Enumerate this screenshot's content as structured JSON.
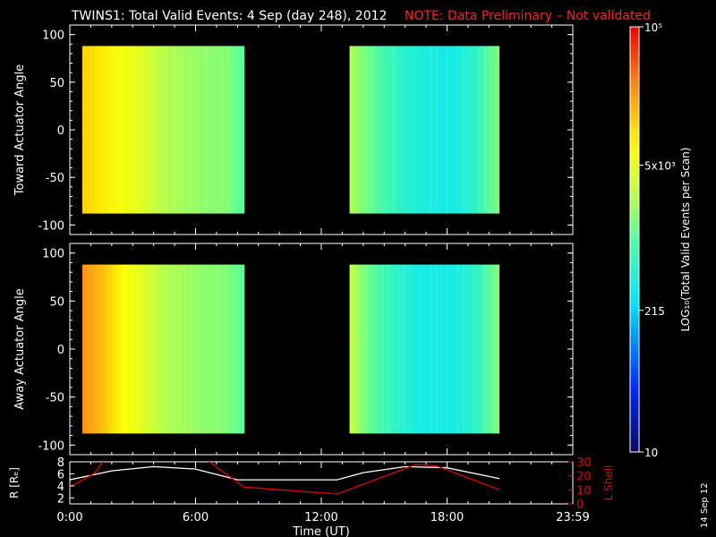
{
  "title": "TWINS1: Total Valid Events:  4 Sep (day 248), 2012",
  "note": "NOTE: Data Preliminary – Not validated",
  "stamp": "14 Sep 12",
  "colorbar": {
    "label": "LOG₁₀(Total Valid Events per Scan)",
    "ticks": [
      "10",
      "215",
      "5x10³",
      "10⁵"
    ],
    "tick_values": [
      10,
      215,
      5000,
      100000
    ],
    "scale": "log"
  },
  "chart_data": [
    {
      "type": "heatmap",
      "ylabel": "Toward Actuator Angle",
      "ylim": [
        -110,
        110
      ],
      "yticks": [
        "100",
        "50",
        "0",
        "-50",
        "-100"
      ],
      "ytick_values": [
        100,
        50,
        0,
        -50,
        -100
      ],
      "xlim_hours": [
        0,
        24
      ],
      "data_blocks": [
        {
          "start": "00:00",
          "end": "08:20",
          "angle_range": [
            -88,
            88
          ],
          "levels": [
            0.78,
            0.74,
            0.7,
            0.66,
            0.6,
            0.58,
            0.56,
            0.55,
            0.5
          ]
        },
        {
          "start": "12:45",
          "end": "20:30",
          "angle_range": [
            -88,
            88
          ],
          "levels": [
            0.6,
            0.52,
            0.46,
            0.42,
            0.4,
            0.38,
            0.4,
            0.45,
            0.55
          ]
        }
      ]
    },
    {
      "type": "heatmap",
      "ylabel": "Away Actuator Angle",
      "ylim": [
        -110,
        110
      ],
      "yticks": [
        "100",
        "50",
        "0",
        "-50",
        "-100"
      ],
      "ytick_values": [
        100,
        50,
        0,
        -50,
        -100
      ],
      "xlim_hours": [
        0,
        24
      ],
      "data_blocks": [
        {
          "start": "00:00",
          "end": "08:20",
          "angle_range": [
            -88,
            88
          ],
          "levels": [
            0.86,
            0.8,
            0.72,
            0.66,
            0.6,
            0.58,
            0.56,
            0.55,
            0.5
          ]
        },
        {
          "start": "12:45",
          "end": "20:30",
          "angle_range": [
            -88,
            88
          ],
          "levels": [
            0.62,
            0.52,
            0.45,
            0.41,
            0.39,
            0.38,
            0.4,
            0.45,
            0.55
          ]
        }
      ]
    },
    {
      "type": "line",
      "xlabel": "Time (UT)",
      "xticks": [
        "0:00",
        "6:00",
        "12:00",
        "18:00",
        "23:59"
      ],
      "xtick_hours": [
        0,
        6,
        12,
        18,
        24
      ],
      "ylabel": "R [Rₑ]",
      "ylim": [
        1,
        8
      ],
      "yticks": [
        "2",
        "4",
        "6",
        "8"
      ],
      "ytick_values": [
        2,
        4,
        6,
        8
      ],
      "y2label": "L Shell",
      "y2lim": [
        0,
        30
      ],
      "y2ticks": [
        "0",
        "10",
        "20",
        "30"
      ],
      "y2tick_values": [
        0,
        10,
        20,
        30
      ],
      "series": [
        {
          "color": "#ffffff",
          "axis": "left",
          "x": [
            0,
            2,
            4,
            6,
            8,
            10,
            12.75,
            14,
            16,
            18,
            20.5
          ],
          "y": [
            5,
            6.5,
            7.2,
            6.8,
            5,
            5,
            5,
            6.2,
            7.2,
            7.0,
            5.2
          ]
        },
        {
          "color": "#e00000",
          "axis": "right",
          "x": [
            0,
            1.2,
            1.8,
            6.2,
            8.3,
            12.75,
            16.5,
            17.5,
            20.5
          ],
          "y": [
            12,
            22,
            35,
            35,
            12,
            7,
            28,
            27,
            10
          ]
        }
      ]
    }
  ]
}
